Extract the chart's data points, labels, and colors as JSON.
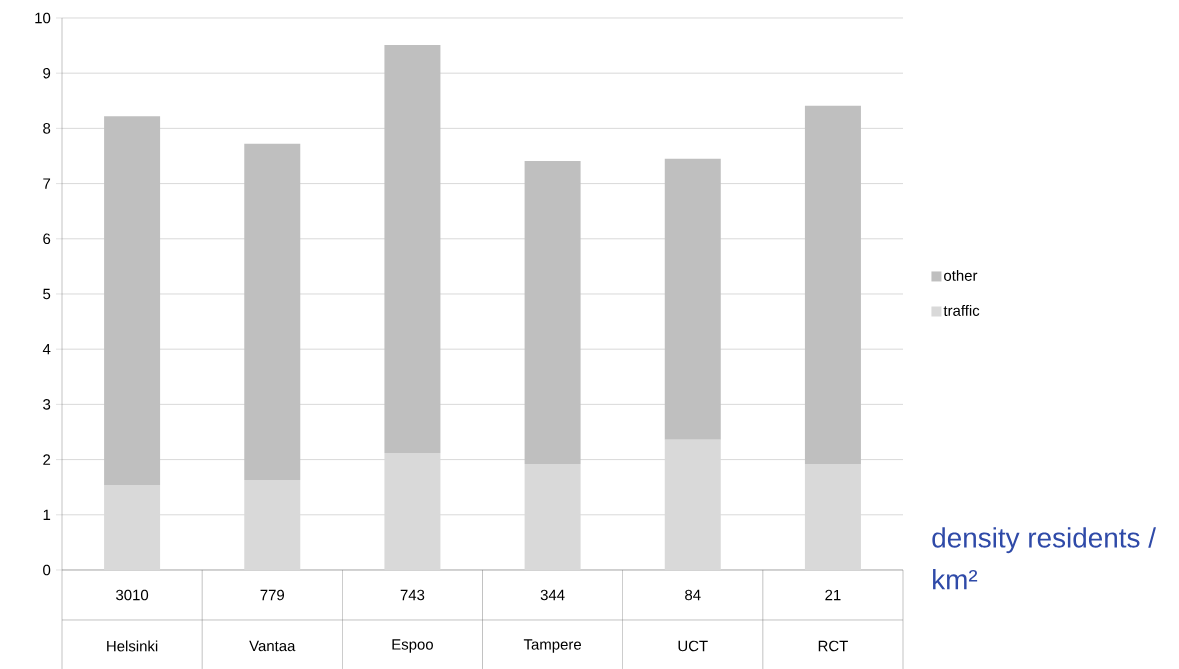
{
  "chart_data": {
    "type": "bar",
    "stacked": true,
    "categories": [
      "Helsinki",
      "Vantaa",
      "Espoo",
      "Tampere",
      "UCT",
      "RCT"
    ],
    "annotations": [
      "3010",
      "779",
      "743",
      "344",
      "84",
      "21"
    ],
    "xlabel": "density residents / km²",
    "series": [
      {
        "name": "traffic",
        "color": "#d9d9d9",
        "values": [
          1.54,
          1.63,
          2.12,
          1.92,
          2.36,
          1.92
        ]
      },
      {
        "name": "other",
        "color": "#bfbfbf",
        "values": [
          6.68,
          6.09,
          7.39,
          5.49,
          5.09,
          6.49
        ]
      }
    ],
    "ylim": [
      0,
      10
    ],
    "yticks": [
      0,
      1,
      2,
      3,
      4,
      5,
      6,
      7,
      8,
      9,
      10
    ],
    "grid": "y",
    "legend": "right"
  }
}
